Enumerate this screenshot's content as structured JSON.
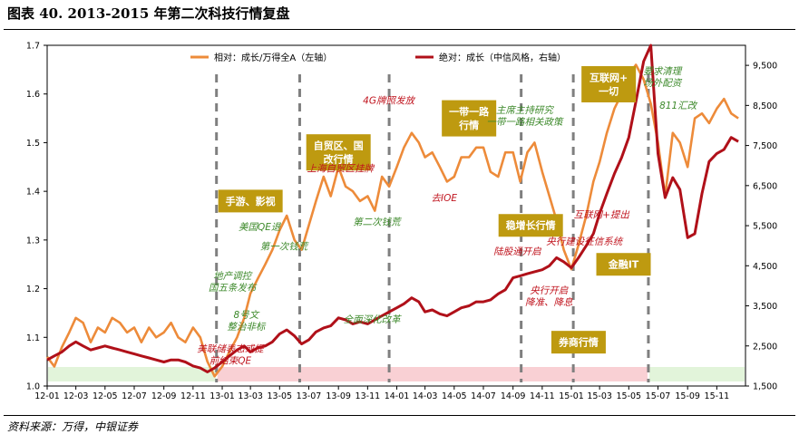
{
  "title": "图表 40. 2013-2015 年第二次科技行情复盘",
  "source": "资料来源：万得，中银证券",
  "colors": {
    "relative": "#ED8B3A",
    "absolute": "#B01019",
    "box_fill": "#BE9A10",
    "box_text": "#FFFFFF",
    "green_text": "#3E8A2C",
    "red_text": "#C0141E",
    "band_green": "#E2F4DA",
    "band_red": "#F9D0D4",
    "dash_line": "#7F7F7F"
  },
  "chart_data": {
    "type": "line",
    "x_ticks": [
      "12-01",
      "12-03",
      "12-05",
      "12-07",
      "12-09",
      "12-11",
      "13-01",
      "13-03",
      "13-05",
      "13-07",
      "13-09",
      "13-11",
      "14-01",
      "14-03",
      "14-05",
      "14-07",
      "14-09",
      "14-11",
      "15-01",
      "15-03",
      "15-05",
      "15-07",
      "15-09",
      "15-11"
    ],
    "y_left": {
      "min": 1.0,
      "max": 1.7,
      "ticks": [
        "1.0",
        "1.1",
        "1.2",
        "1.3",
        "1.4",
        "1.5",
        "1.6",
        "1.7"
      ]
    },
    "y_right": {
      "min": 1500,
      "max": 10000,
      "ticks": [
        "1,500",
        "2,500",
        "3,500",
        "4,500",
        "5,500",
        "6,500",
        "7,500",
        "8,500",
        "9,500"
      ]
    },
    "series": [
      {
        "name": "相对：成长/万得全A（左轴）",
        "axis": "left",
        "points": [
          [
            "2012-01-01",
            1.06
          ],
          [
            "2012-01-16",
            1.04
          ],
          [
            "2012-02-01",
            1.08
          ],
          [
            "2012-02-16",
            1.11
          ],
          [
            "2012-03-01",
            1.14
          ],
          [
            "2012-03-16",
            1.13
          ],
          [
            "2012-04-01",
            1.09
          ],
          [
            "2012-04-16",
            1.12
          ],
          [
            "2012-05-01",
            1.11
          ],
          [
            "2012-05-16",
            1.14
          ],
          [
            "2012-06-01",
            1.13
          ],
          [
            "2012-06-16",
            1.11
          ],
          [
            "2012-07-01",
            1.12
          ],
          [
            "2012-07-16",
            1.09
          ],
          [
            "2012-08-01",
            1.12
          ],
          [
            "2012-08-16",
            1.1
          ],
          [
            "2012-09-01",
            1.11
          ],
          [
            "2012-09-16",
            1.13
          ],
          [
            "2012-10-01",
            1.1
          ],
          [
            "2012-10-16",
            1.09
          ],
          [
            "2012-11-01",
            1.12
          ],
          [
            "2012-11-16",
            1.1
          ],
          [
            "2012-12-01",
            1.05
          ],
          [
            "2012-12-16",
            1.02
          ],
          [
            "2013-01-01",
            1.04
          ],
          [
            "2013-01-16",
            1.07
          ],
          [
            "2013-02-01",
            1.1
          ],
          [
            "2013-02-16",
            1.14
          ],
          [
            "2013-03-01",
            1.19
          ],
          [
            "2013-03-16",
            1.22
          ],
          [
            "2013-04-01",
            1.25
          ],
          [
            "2013-04-16",
            1.28
          ],
          [
            "2013-05-01",
            1.32
          ],
          [
            "2013-05-16",
            1.35
          ],
          [
            "2013-06-01",
            1.3
          ],
          [
            "2013-06-16",
            1.28
          ],
          [
            "2013-07-01",
            1.33
          ],
          [
            "2013-07-16",
            1.38
          ],
          [
            "2013-08-01",
            1.43
          ],
          [
            "2013-08-16",
            1.39
          ],
          [
            "2013-09-01",
            1.45
          ],
          [
            "2013-09-16",
            1.41
          ],
          [
            "2013-10-01",
            1.4
          ],
          [
            "2013-10-16",
            1.38
          ],
          [
            "2013-11-01",
            1.39
          ],
          [
            "2013-11-16",
            1.36
          ],
          [
            "2013-12-01",
            1.43
          ],
          [
            "2013-12-16",
            1.41
          ],
          [
            "2014-01-01",
            1.45
          ],
          [
            "2014-01-16",
            1.49
          ],
          [
            "2014-02-01",
            1.52
          ],
          [
            "2014-02-16",
            1.5
          ],
          [
            "2014-03-01",
            1.47
          ],
          [
            "2014-03-16",
            1.48
          ],
          [
            "2014-04-01",
            1.45
          ],
          [
            "2014-04-16",
            1.42
          ],
          [
            "2014-05-01",
            1.43
          ],
          [
            "2014-05-16",
            1.47
          ],
          [
            "2014-06-01",
            1.47
          ],
          [
            "2014-06-16",
            1.49
          ],
          [
            "2014-07-01",
            1.49
          ],
          [
            "2014-07-16",
            1.44
          ],
          [
            "2014-08-01",
            1.43
          ],
          [
            "2014-08-16",
            1.48
          ],
          [
            "2014-09-01",
            1.48
          ],
          [
            "2014-09-16",
            1.42
          ],
          [
            "2014-10-01",
            1.48
          ],
          [
            "2014-10-16",
            1.5
          ],
          [
            "2014-11-01",
            1.44
          ],
          [
            "2014-11-16",
            1.39
          ],
          [
            "2014-12-01",
            1.34
          ],
          [
            "2014-12-16",
            1.28
          ],
          [
            "2015-01-01",
            1.24
          ],
          [
            "2015-01-16",
            1.29
          ],
          [
            "2015-02-01",
            1.35
          ],
          [
            "2015-02-16",
            1.42
          ],
          [
            "2015-03-01",
            1.46
          ],
          [
            "2015-03-16",
            1.52
          ],
          [
            "2015-04-01",
            1.57
          ],
          [
            "2015-04-16",
            1.6
          ],
          [
            "2015-05-01",
            1.64
          ],
          [
            "2015-05-16",
            1.66
          ],
          [
            "2015-06-01",
            1.63
          ],
          [
            "2015-06-16",
            1.58
          ],
          [
            "2015-07-01",
            1.5
          ],
          [
            "2015-07-16",
            1.39
          ],
          [
            "2015-08-01",
            1.52
          ],
          [
            "2015-08-16",
            1.5
          ],
          [
            "2015-09-01",
            1.45
          ],
          [
            "2015-09-16",
            1.55
          ],
          [
            "2015-10-01",
            1.56
          ],
          [
            "2015-10-16",
            1.54
          ],
          [
            "2015-11-01",
            1.57
          ],
          [
            "2015-11-16",
            1.59
          ],
          [
            "2015-12-01",
            1.56
          ],
          [
            "2015-12-16",
            1.55
          ]
        ]
      },
      {
        "name": "绝对：成长（中信风格，右轴）",
        "axis": "right",
        "points": [
          [
            "2012-01-01",
            2150
          ],
          [
            "2012-01-16",
            2250
          ],
          [
            "2012-02-01",
            2350
          ],
          [
            "2012-02-16",
            2500
          ],
          [
            "2012-03-01",
            2600
          ],
          [
            "2012-03-16",
            2500
          ],
          [
            "2012-04-01",
            2400
          ],
          [
            "2012-04-16",
            2450
          ],
          [
            "2012-05-01",
            2500
          ],
          [
            "2012-05-16",
            2450
          ],
          [
            "2012-06-01",
            2400
          ],
          [
            "2012-06-16",
            2350
          ],
          [
            "2012-07-01",
            2300
          ],
          [
            "2012-07-16",
            2250
          ],
          [
            "2012-08-01",
            2200
          ],
          [
            "2012-08-16",
            2150
          ],
          [
            "2012-09-01",
            2100
          ],
          [
            "2012-09-16",
            2150
          ],
          [
            "2012-10-01",
            2150
          ],
          [
            "2012-10-16",
            2100
          ],
          [
            "2012-11-01",
            2000
          ],
          [
            "2012-11-16",
            1950
          ],
          [
            "2012-12-01",
            1850
          ],
          [
            "2012-12-16",
            1950
          ],
          [
            "2013-01-01",
            2100
          ],
          [
            "2013-01-16",
            2250
          ],
          [
            "2013-02-01",
            2400
          ],
          [
            "2013-02-16",
            2500
          ],
          [
            "2013-03-01",
            2350
          ],
          [
            "2013-03-16",
            2450
          ],
          [
            "2013-04-01",
            2500
          ],
          [
            "2013-04-16",
            2600
          ],
          [
            "2013-05-01",
            2800
          ],
          [
            "2013-05-16",
            2900
          ],
          [
            "2013-06-01",
            2750
          ],
          [
            "2013-06-16",
            2550
          ],
          [
            "2013-07-01",
            2650
          ],
          [
            "2013-07-16",
            2850
          ],
          [
            "2013-08-01",
            2950
          ],
          [
            "2013-08-16",
            3000
          ],
          [
            "2013-09-01",
            3200
          ],
          [
            "2013-09-16",
            3150
          ],
          [
            "2013-10-01",
            3050
          ],
          [
            "2013-10-16",
            3100
          ],
          [
            "2013-11-01",
            3050
          ],
          [
            "2013-11-16",
            3150
          ],
          [
            "2013-12-01",
            3250
          ],
          [
            "2013-12-16",
            3350
          ],
          [
            "2014-01-01",
            3450
          ],
          [
            "2014-01-16",
            3550
          ],
          [
            "2014-02-01",
            3700
          ],
          [
            "2014-02-16",
            3600
          ],
          [
            "2014-03-01",
            3350
          ],
          [
            "2014-03-16",
            3400
          ],
          [
            "2014-04-01",
            3300
          ],
          [
            "2014-04-16",
            3250
          ],
          [
            "2014-05-01",
            3350
          ],
          [
            "2014-05-16",
            3450
          ],
          [
            "2014-06-01",
            3500
          ],
          [
            "2014-06-16",
            3600
          ],
          [
            "2014-07-01",
            3600
          ],
          [
            "2014-07-16",
            3650
          ],
          [
            "2014-08-01",
            3800
          ],
          [
            "2014-08-16",
            3900
          ],
          [
            "2014-09-01",
            4200
          ],
          [
            "2014-09-16",
            4250
          ],
          [
            "2014-10-01",
            4300
          ],
          [
            "2014-10-16",
            4350
          ],
          [
            "2014-11-01",
            4400
          ],
          [
            "2014-11-16",
            4500
          ],
          [
            "2014-12-01",
            4700
          ],
          [
            "2014-12-16",
            4600
          ],
          [
            "2015-01-01",
            4450
          ],
          [
            "2015-01-16",
            4700
          ],
          [
            "2015-02-01",
            5000
          ],
          [
            "2015-02-16",
            5300
          ],
          [
            "2015-03-01",
            5800
          ],
          [
            "2015-03-16",
            6300
          ],
          [
            "2015-04-01",
            6800
          ],
          [
            "2015-04-16",
            7200
          ],
          [
            "2015-05-01",
            7700
          ],
          [
            "2015-05-16",
            8600
          ],
          [
            "2015-06-01",
            9600
          ],
          [
            "2015-06-16",
            10000
          ],
          [
            "2015-07-01",
            7300
          ],
          [
            "2015-07-16",
            6200
          ],
          [
            "2015-08-01",
            6700
          ],
          [
            "2015-08-16",
            6400
          ],
          [
            "2015-09-01",
            5200
          ],
          [
            "2015-09-16",
            5300
          ],
          [
            "2015-10-01",
            6300
          ],
          [
            "2015-10-16",
            7100
          ],
          [
            "2015-11-01",
            7300
          ],
          [
            "2015-11-16",
            7400
          ],
          [
            "2015-12-01",
            7700
          ],
          [
            "2015-12-16",
            7600
          ]
        ]
      }
    ],
    "vertical_dashes": [
      "2012-12-20",
      "2013-06-12",
      "2013-12-16",
      "2014-09-18",
      "2015-01-05",
      "2015-06-11"
    ],
    "bands": [
      {
        "from": "2012-01-01",
        "to": "2012-12-20",
        "color": "green"
      },
      {
        "from": "2012-12-20",
        "to": "2015-06-11",
        "color": "red"
      },
      {
        "from": "2015-06-11",
        "to": "2015-12-31",
        "color": "green"
      }
    ],
    "boxed_annotations": [
      {
        "text": [
          "手游、影视"
        ],
        "x": "2013-03-01",
        "y": 1.38
      },
      {
        "text": [
          "自贸区、国",
          "改行情"
        ],
        "x": "2013-09-01",
        "y": 1.48
      },
      {
        "text": [
          "一带一路",
          "行情"
        ],
        "x": "2014-06-01",
        "y": 1.55
      },
      {
        "text": [
          "稳增长行情"
        ],
        "x": "2014-10-08",
        "y": 1.33
      },
      {
        "text": [
          "互联网+",
          "一切"
        ],
        "x": "2015-03-20",
        "y": 1.62
      },
      {
        "text": [
          "金融IT"
        ],
        "x": "2015-04-20",
        "y": 1.25
      },
      {
        "text": [
          "券商行情"
        ],
        "x": "2015-01-16",
        "y": 1.09
      }
    ],
    "text_annotations": [
      {
        "text": [
          "美联储表态或提",
          "前结束QE"
        ],
        "x": "2013-01-18",
        "y": 1.07,
        "color": "red"
      },
      {
        "text": [
          "8号文",
          "整治非标"
        ],
        "x": "2013-02-20",
        "y": 1.14,
        "color": "green"
      },
      {
        "text": [
          "地产调控",
          "国五条发布"
        ],
        "x": "2013-01-22",
        "y": 1.22,
        "color": "green"
      },
      {
        "text": [
          "美国QE退"
        ],
        "x": "2013-03-20",
        "y": 1.32,
        "color": "green"
      },
      {
        "text": [
          "第一次钱荒"
        ],
        "x": "2013-05-10",
        "y": 1.28,
        "color": "green"
      },
      {
        "text": [
          "全面深化改革"
        ],
        "x": "2013-11-10",
        "y": 1.13,
        "color": "green"
      },
      {
        "text": [
          "上海自贸区挂牌"
        ],
        "x": "2013-09-05",
        "y": 1.44,
        "color": "red"
      },
      {
        "text": [
          "第二次钱荒"
        ],
        "x": "2013-11-20",
        "y": 1.33,
        "color": "green"
      },
      {
        "text": [
          "4G牌照发放"
        ],
        "x": "2013-12-15",
        "y": 1.58,
        "color": "red"
      },
      {
        "text": [
          "去IOE"
        ],
        "x": "2014-04-10",
        "y": 1.38,
        "color": "red"
      },
      {
        "text": [
          "主席主持研究",
          "一带一路相关政策"
        ],
        "x": "2014-09-25",
        "y": 1.56,
        "color": "green"
      },
      {
        "text": [
          "陆股通开启"
        ],
        "x": "2014-09-10",
        "y": 1.27,
        "color": "red"
      },
      {
        "text": [
          "互联网+提出"
        ],
        "x": "2015-03-05",
        "y": 1.345,
        "color": "red"
      },
      {
        "text": [
          "央行建设征信系统"
        ],
        "x": "2015-01-28",
        "y": 1.29,
        "color": "red"
      },
      {
        "text": [
          "央行开启",
          "降准、降息"
        ],
        "x": "2014-11-15",
        "y": 1.19,
        "color": "red"
      },
      {
        "text": [
          "要求清理",
          "场外配资"
        ],
        "x": "2015-07-10",
        "y": 1.64,
        "color": "green"
      },
      {
        "text": [
          "811汇改"
        ],
        "x": "2015-08-12",
        "y": 1.57,
        "color": "green"
      }
    ]
  }
}
